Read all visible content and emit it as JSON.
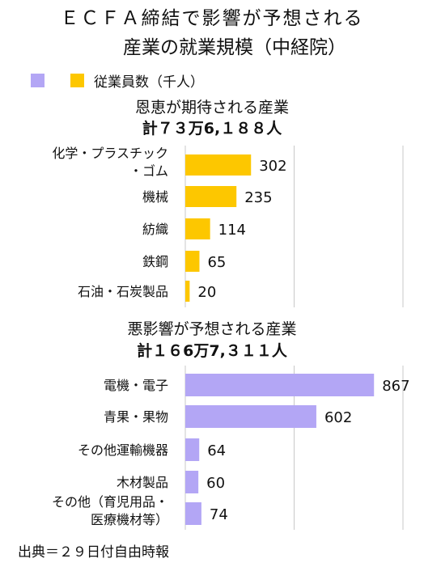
{
  "title_line1": "ＥＣＦＡ締結で影響が予想される",
  "title_line2": "産業の就業規模（中経院）",
  "legend": [
    {
      "label": "",
      "color": "#b3a6f5"
    },
    {
      "label": "従業員数（千人）",
      "color": "#fdc700"
    }
  ],
  "source": "出典＝２９日付自由時報",
  "chart_data": [
    {
      "type": "bar",
      "orientation": "horizontal",
      "title": "恩恵が期待される産業",
      "total": "計７３万6,１８８人",
      "categories": [
        "化学・プラスチック・ゴム",
        "機械",
        "紡織",
        "鉄鋼",
        "石油・石炭製品"
      ],
      "category_lines": [
        [
          "化学・プラスチック",
          "・ゴム"
        ],
        [
          "機械"
        ],
        [
          "紡織"
        ],
        [
          "鉄鋼"
        ],
        [
          "石油・石炭製品"
        ]
      ],
      "values": [
        302,
        235,
        114,
        65,
        20
      ],
      "value_labels": [
        "302",
        "235",
        "114",
        "65",
        "20"
      ],
      "series_name": "従業員数（千人）",
      "color": "#fdc700",
      "xlim": [
        0,
        1000
      ],
      "grid": true
    },
    {
      "type": "bar",
      "orientation": "horizontal",
      "title": "悪影響が予想される産業",
      "total": "計１６6万7,３１１人",
      "categories": [
        "電機・電子",
        "青果・果物",
        "その他運輸機器",
        "木材製品",
        "その他（育児用品・医療機材等）"
      ],
      "category_lines": [
        [
          "電機・電子"
        ],
        [
          "青果・果物"
        ],
        [
          "その他運輸機器"
        ],
        [
          "木材製品"
        ],
        [
          "その他（育児用品・",
          "医療機材等）"
        ]
      ],
      "values": [
        867,
        602,
        64,
        60,
        74
      ],
      "value_labels": [
        "867",
        "602",
        "64",
        "60",
        "74"
      ],
      "series_name": "従業員数（千人）",
      "color": "#b3a6f5",
      "xlim": [
        0,
        1000
      ],
      "grid": true
    }
  ]
}
